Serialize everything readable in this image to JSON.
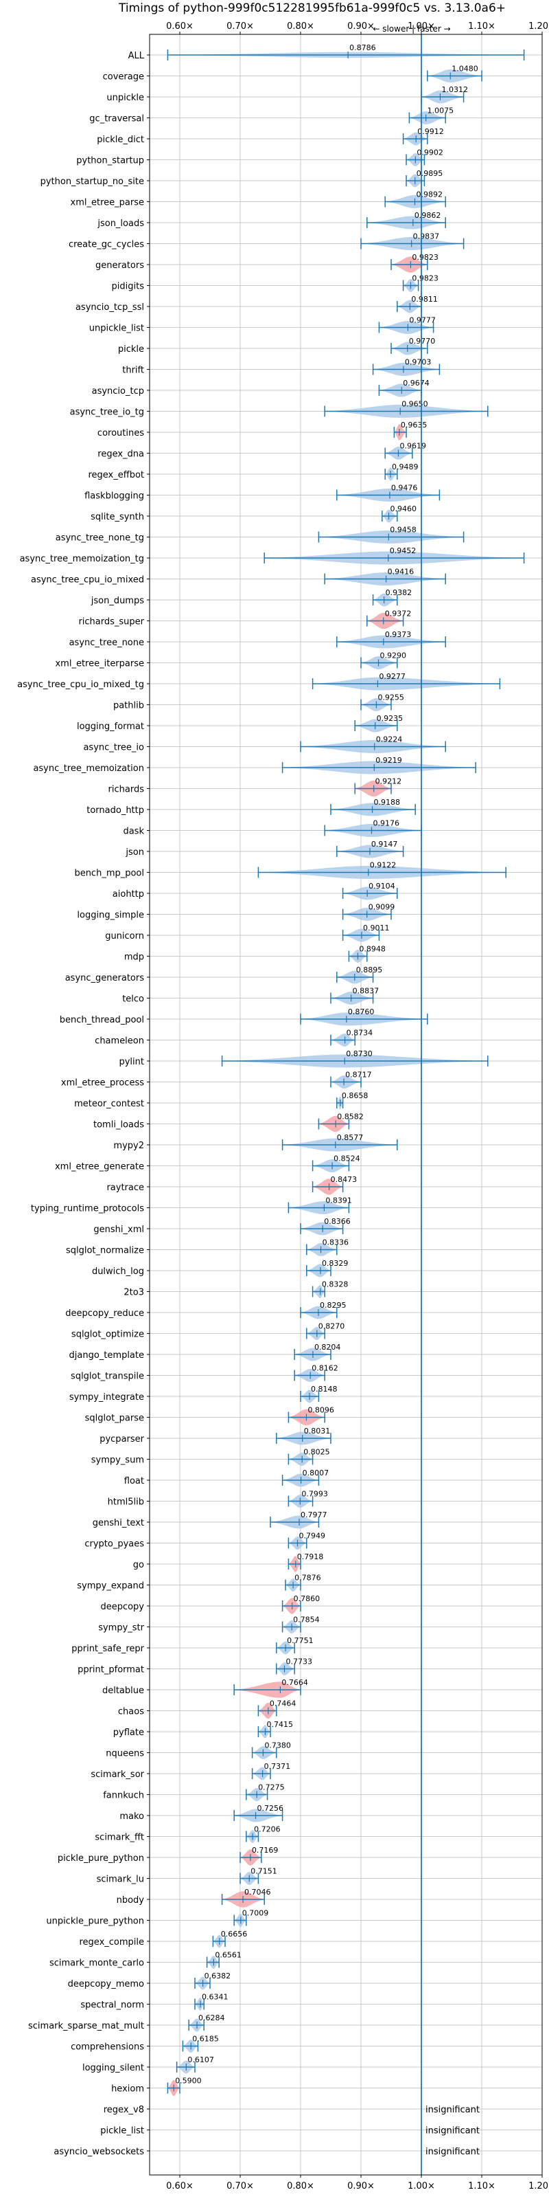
{
  "chart_data": {
    "type": "violin",
    "title": "Timings of python-999f0c512281995fb61a-999f0c5 vs. 3.13.0a6+",
    "subtitle": "← slower | faster →",
    "xlim": [
      0.55,
      1.2
    ],
    "xticks": [
      0.6,
      0.7,
      0.8,
      0.9,
      1.0,
      1.1,
      1.2
    ],
    "xtick_labels": [
      "0.60×",
      "0.70×",
      "0.80×",
      "0.90×",
      "1.00×",
      "1.10×",
      "1.20×"
    ],
    "reference_line": 1.0,
    "grid": true,
    "colors": {
      "normal": "#a8c8e8",
      "highlight": "#f4a0a4",
      "line": "#1f77b4",
      "grid": "#c8c8c8"
    },
    "insignificant_label": "insignificant",
    "benchmarks": [
      {
        "name": "ALL",
        "value": 0.8786,
        "lo": 0.58,
        "hi": 1.17,
        "spread": 0.02,
        "hl": false
      },
      {
        "name": "coverage",
        "value": 1.048,
        "lo": 1.01,
        "hi": 1.1,
        "spread": 0.5,
        "hl": false
      },
      {
        "name": "unpickle",
        "value": 1.0312,
        "lo": 1.0,
        "hi": 1.07,
        "spread": 0.5,
        "hl": false
      },
      {
        "name": "gc_traversal",
        "value": 1.0075,
        "lo": 0.98,
        "hi": 1.04,
        "spread": 0.5,
        "hl": false
      },
      {
        "name": "pickle_dict",
        "value": 0.9912,
        "lo": 0.97,
        "hi": 1.01,
        "spread": 0.5,
        "hl": false
      },
      {
        "name": "python_startup",
        "value": 0.9902,
        "lo": 0.975,
        "hi": 1.005,
        "spread": 0.5,
        "hl": false
      },
      {
        "name": "python_startup_no_site",
        "value": 0.9895,
        "lo": 0.975,
        "hi": 1.005,
        "spread": 0.5,
        "hl": false
      },
      {
        "name": "xml_etree_parse",
        "value": 0.9892,
        "lo": 0.94,
        "hi": 1.04,
        "spread": 0.5,
        "hl": false
      },
      {
        "name": "json_loads",
        "value": 0.9862,
        "lo": 0.91,
        "hi": 1.04,
        "spread": 0.5,
        "hl": false
      },
      {
        "name": "create_gc_cycles",
        "value": 0.9837,
        "lo": 0.9,
        "hi": 1.07,
        "spread": 0.5,
        "hl": false
      },
      {
        "name": "generators",
        "value": 0.9823,
        "lo": 0.95,
        "hi": 1.01,
        "spread": 0.7,
        "hl": true
      },
      {
        "name": "pidigits",
        "value": 0.9823,
        "lo": 0.97,
        "hi": 0.995,
        "spread": 0.5,
        "hl": false
      },
      {
        "name": "asyncio_tcp_ssl",
        "value": 0.9811,
        "lo": 0.96,
        "hi": 1.0,
        "spread": 0.5,
        "hl": false
      },
      {
        "name": "unpickle_list",
        "value": 0.9777,
        "lo": 0.93,
        "hi": 1.02,
        "spread": 0.5,
        "hl": false
      },
      {
        "name": "pickle",
        "value": 0.977,
        "lo": 0.95,
        "hi": 1.01,
        "spread": 0.5,
        "hl": false
      },
      {
        "name": "thrift",
        "value": 0.9703,
        "lo": 0.92,
        "hi": 1.03,
        "spread": 0.5,
        "hl": false
      },
      {
        "name": "asyncio_tcp",
        "value": 0.9674,
        "lo": 0.93,
        "hi": 1.0,
        "spread": 0.5,
        "hl": false
      },
      {
        "name": "async_tree_io_tg",
        "value": 0.965,
        "lo": 0.84,
        "hi": 1.11,
        "spread": 0.5,
        "hl": false
      },
      {
        "name": "coroutines",
        "value": 0.9635,
        "lo": 0.955,
        "hi": 0.975,
        "spread": 0.7,
        "hl": true
      },
      {
        "name": "regex_dna",
        "value": 0.9619,
        "lo": 0.94,
        "hi": 0.985,
        "spread": 0.5,
        "hl": false
      },
      {
        "name": "regex_effbot",
        "value": 0.9489,
        "lo": 0.94,
        "hi": 0.96,
        "spread": 0.5,
        "hl": false
      },
      {
        "name": "flaskblogging",
        "value": 0.9476,
        "lo": 0.86,
        "hi": 1.03,
        "spread": 0.5,
        "hl": false
      },
      {
        "name": "sqlite_synth",
        "value": 0.946,
        "lo": 0.935,
        "hi": 0.96,
        "spread": 0.5,
        "hl": false
      },
      {
        "name": "async_tree_none_tg",
        "value": 0.9458,
        "lo": 0.83,
        "hi": 1.07,
        "spread": 0.5,
        "hl": false
      },
      {
        "name": "async_tree_memoization_tg",
        "value": 0.9452,
        "lo": 0.74,
        "hi": 1.17,
        "spread": 0.5,
        "hl": false
      },
      {
        "name": "async_tree_cpu_io_mixed",
        "value": 0.9416,
        "lo": 0.84,
        "hi": 1.04,
        "spread": 0.5,
        "hl": false
      },
      {
        "name": "json_dumps",
        "value": 0.9382,
        "lo": 0.92,
        "hi": 0.96,
        "spread": 0.5,
        "hl": false
      },
      {
        "name": "richards_super",
        "value": 0.9372,
        "lo": 0.91,
        "hi": 0.97,
        "spread": 0.7,
        "hl": true
      },
      {
        "name": "async_tree_none",
        "value": 0.9373,
        "lo": 0.86,
        "hi": 1.04,
        "spread": 0.5,
        "hl": false
      },
      {
        "name": "xml_etree_iterparse",
        "value": 0.929,
        "lo": 0.9,
        "hi": 0.96,
        "spread": 0.5,
        "hl": false
      },
      {
        "name": "async_tree_cpu_io_mixed_tg",
        "value": 0.9277,
        "lo": 0.82,
        "hi": 1.13,
        "spread": 0.5,
        "hl": false
      },
      {
        "name": "pathlib",
        "value": 0.9255,
        "lo": 0.9,
        "hi": 0.95,
        "spread": 0.5,
        "hl": false
      },
      {
        "name": "logging_format",
        "value": 0.9235,
        "lo": 0.89,
        "hi": 0.96,
        "spread": 0.5,
        "hl": false
      },
      {
        "name": "async_tree_io",
        "value": 0.9224,
        "lo": 0.8,
        "hi": 1.04,
        "spread": 0.5,
        "hl": false
      },
      {
        "name": "async_tree_memoization",
        "value": 0.9219,
        "lo": 0.77,
        "hi": 1.09,
        "spread": 0.5,
        "hl": false
      },
      {
        "name": "richards",
        "value": 0.9212,
        "lo": 0.89,
        "hi": 0.95,
        "spread": 0.7,
        "hl": true
      },
      {
        "name": "tornado_http",
        "value": 0.9188,
        "lo": 0.85,
        "hi": 0.99,
        "spread": 0.5,
        "hl": false
      },
      {
        "name": "dask",
        "value": 0.9176,
        "lo": 0.84,
        "hi": 1.0,
        "spread": 0.5,
        "hl": false
      },
      {
        "name": "json",
        "value": 0.9147,
        "lo": 0.86,
        "hi": 0.97,
        "spread": 0.5,
        "hl": false
      },
      {
        "name": "bench_mp_pool",
        "value": 0.9122,
        "lo": 0.73,
        "hi": 1.14,
        "spread": 0.5,
        "hl": false
      },
      {
        "name": "aiohttp",
        "value": 0.9104,
        "lo": 0.87,
        "hi": 0.96,
        "spread": 0.5,
        "hl": false
      },
      {
        "name": "logging_simple",
        "value": 0.9099,
        "lo": 0.87,
        "hi": 0.95,
        "spread": 0.5,
        "hl": false
      },
      {
        "name": "gunicorn",
        "value": 0.9011,
        "lo": 0.87,
        "hi": 0.93,
        "spread": 0.5,
        "hl": false
      },
      {
        "name": "mdp",
        "value": 0.8948,
        "lo": 0.88,
        "hi": 0.91,
        "spread": 0.5,
        "hl": false
      },
      {
        "name": "async_generators",
        "value": 0.8895,
        "lo": 0.86,
        "hi": 0.92,
        "spread": 0.5,
        "hl": false
      },
      {
        "name": "telco",
        "value": 0.8837,
        "lo": 0.85,
        "hi": 0.92,
        "spread": 0.5,
        "hl": false
      },
      {
        "name": "bench_thread_pool",
        "value": 0.876,
        "lo": 0.8,
        "hi": 1.01,
        "spread": 0.5,
        "hl": false
      },
      {
        "name": "chameleon",
        "value": 0.8734,
        "lo": 0.85,
        "hi": 0.89,
        "spread": 0.5,
        "hl": false
      },
      {
        "name": "pylint",
        "value": 0.873,
        "lo": 0.67,
        "hi": 1.11,
        "spread": 0.5,
        "hl": false
      },
      {
        "name": "xml_etree_process",
        "value": 0.8717,
        "lo": 0.85,
        "hi": 0.9,
        "spread": 0.5,
        "hl": false
      },
      {
        "name": "meteor_contest",
        "value": 0.8658,
        "lo": 0.86,
        "hi": 0.87,
        "spread": 0.5,
        "hl": false
      },
      {
        "name": "tomli_loads",
        "value": 0.8582,
        "lo": 0.83,
        "hi": 0.88,
        "spread": 0.7,
        "hl": true
      },
      {
        "name": "mypy2",
        "value": 0.8577,
        "lo": 0.77,
        "hi": 0.96,
        "spread": 0.5,
        "hl": false
      },
      {
        "name": "xml_etree_generate",
        "value": 0.8524,
        "lo": 0.82,
        "hi": 0.88,
        "spread": 0.5,
        "hl": false
      },
      {
        "name": "raytrace",
        "value": 0.8473,
        "lo": 0.82,
        "hi": 0.87,
        "spread": 0.7,
        "hl": true
      },
      {
        "name": "typing_runtime_protocols",
        "value": 0.8391,
        "lo": 0.78,
        "hi": 0.88,
        "spread": 0.5,
        "hl": false
      },
      {
        "name": "genshi_xml",
        "value": 0.8366,
        "lo": 0.8,
        "hi": 0.87,
        "spread": 0.5,
        "hl": false
      },
      {
        "name": "sqlglot_normalize",
        "value": 0.8336,
        "lo": 0.81,
        "hi": 0.86,
        "spread": 0.5,
        "hl": false
      },
      {
        "name": "dulwich_log",
        "value": 0.8329,
        "lo": 0.81,
        "hi": 0.85,
        "spread": 0.5,
        "hl": false
      },
      {
        "name": "2to3",
        "value": 0.8328,
        "lo": 0.82,
        "hi": 0.84,
        "spread": 0.5,
        "hl": false
      },
      {
        "name": "deepcopy_reduce",
        "value": 0.8295,
        "lo": 0.8,
        "hi": 0.86,
        "spread": 0.5,
        "hl": false
      },
      {
        "name": "sqlglot_optimize",
        "value": 0.827,
        "lo": 0.81,
        "hi": 0.84,
        "spread": 0.5,
        "hl": false
      },
      {
        "name": "django_template",
        "value": 0.8204,
        "lo": 0.79,
        "hi": 0.85,
        "spread": 0.5,
        "hl": false
      },
      {
        "name": "sqlglot_transpile",
        "value": 0.8162,
        "lo": 0.79,
        "hi": 0.84,
        "spread": 0.5,
        "hl": false
      },
      {
        "name": "sympy_integrate",
        "value": 0.8148,
        "lo": 0.8,
        "hi": 0.83,
        "spread": 0.5,
        "hl": false
      },
      {
        "name": "sqlglot_parse",
        "value": 0.8096,
        "lo": 0.78,
        "hi": 0.84,
        "spread": 0.7,
        "hl": true
      },
      {
        "name": "pycparser",
        "value": 0.8031,
        "lo": 0.76,
        "hi": 0.85,
        "spread": 0.5,
        "hl": false
      },
      {
        "name": "sympy_sum",
        "value": 0.8025,
        "lo": 0.78,
        "hi": 0.82,
        "spread": 0.5,
        "hl": false
      },
      {
        "name": "float",
        "value": 0.8007,
        "lo": 0.77,
        "hi": 0.83,
        "spread": 0.5,
        "hl": false
      },
      {
        "name": "html5lib",
        "value": 0.7993,
        "lo": 0.78,
        "hi": 0.82,
        "spread": 0.5,
        "hl": false
      },
      {
        "name": "genshi_text",
        "value": 0.7977,
        "lo": 0.75,
        "hi": 0.83,
        "spread": 0.5,
        "hl": false
      },
      {
        "name": "crypto_pyaes",
        "value": 0.7949,
        "lo": 0.78,
        "hi": 0.81,
        "spread": 0.5,
        "hl": false
      },
      {
        "name": "go",
        "value": 0.7918,
        "lo": 0.78,
        "hi": 0.8,
        "spread": 0.7,
        "hl": true
      },
      {
        "name": "sympy_expand",
        "value": 0.7876,
        "lo": 0.775,
        "hi": 0.8,
        "spread": 0.5,
        "hl": false
      },
      {
        "name": "deepcopy",
        "value": 0.786,
        "lo": 0.77,
        "hi": 0.8,
        "spread": 0.7,
        "hl": true
      },
      {
        "name": "sympy_str",
        "value": 0.7854,
        "lo": 0.77,
        "hi": 0.8,
        "spread": 0.5,
        "hl": false
      },
      {
        "name": "pprint_safe_repr",
        "value": 0.7751,
        "lo": 0.76,
        "hi": 0.79,
        "spread": 0.5,
        "hl": false
      },
      {
        "name": "pprint_pformat",
        "value": 0.7733,
        "lo": 0.76,
        "hi": 0.79,
        "spread": 0.5,
        "hl": false
      },
      {
        "name": "deltablue",
        "value": 0.7664,
        "lo": 0.69,
        "hi": 0.8,
        "spread": 0.7,
        "hl": true
      },
      {
        "name": "chaos",
        "value": 0.7464,
        "lo": 0.73,
        "hi": 0.76,
        "spread": 0.7,
        "hl": true
      },
      {
        "name": "pyflate",
        "value": 0.7415,
        "lo": 0.73,
        "hi": 0.75,
        "spread": 0.5,
        "hl": false
      },
      {
        "name": "nqueens",
        "value": 0.738,
        "lo": 0.72,
        "hi": 0.76,
        "spread": 0.5,
        "hl": false
      },
      {
        "name": "scimark_sor",
        "value": 0.7371,
        "lo": 0.72,
        "hi": 0.75,
        "spread": 0.5,
        "hl": false
      },
      {
        "name": "fannkuch",
        "value": 0.7275,
        "lo": 0.71,
        "hi": 0.745,
        "spread": 0.5,
        "hl": false
      },
      {
        "name": "mako",
        "value": 0.7256,
        "lo": 0.69,
        "hi": 0.77,
        "spread": 0.5,
        "hl": false
      },
      {
        "name": "scimark_fft",
        "value": 0.7206,
        "lo": 0.71,
        "hi": 0.73,
        "spread": 0.5,
        "hl": false
      },
      {
        "name": "pickle_pure_python",
        "value": 0.7169,
        "lo": 0.7,
        "hi": 0.735,
        "spread": 0.7,
        "hl": true
      },
      {
        "name": "scimark_lu",
        "value": 0.7151,
        "lo": 0.7,
        "hi": 0.73,
        "spread": 0.5,
        "hl": false
      },
      {
        "name": "nbody",
        "value": 0.7046,
        "lo": 0.67,
        "hi": 0.74,
        "spread": 0.7,
        "hl": true
      },
      {
        "name": "unpickle_pure_python",
        "value": 0.7009,
        "lo": 0.69,
        "hi": 0.71,
        "spread": 0.5,
        "hl": false
      },
      {
        "name": "regex_compile",
        "value": 0.6656,
        "lo": 0.655,
        "hi": 0.675,
        "spread": 0.5,
        "hl": false
      },
      {
        "name": "scimark_monte_carlo",
        "value": 0.6561,
        "lo": 0.645,
        "hi": 0.665,
        "spread": 0.5,
        "hl": false
      },
      {
        "name": "deepcopy_memo",
        "value": 0.6382,
        "lo": 0.625,
        "hi": 0.65,
        "spread": 0.5,
        "hl": false
      },
      {
        "name": "spectral_norm",
        "value": 0.6341,
        "lo": 0.625,
        "hi": 0.64,
        "spread": 0.5,
        "hl": false
      },
      {
        "name": "scimark_sparse_mat_mult",
        "value": 0.6284,
        "lo": 0.615,
        "hi": 0.64,
        "spread": 0.5,
        "hl": false
      },
      {
        "name": "comprehensions",
        "value": 0.6185,
        "lo": 0.605,
        "hi": 0.63,
        "spread": 0.5,
        "hl": false
      },
      {
        "name": "logging_silent",
        "value": 0.6107,
        "lo": 0.595,
        "hi": 0.625,
        "spread": 0.5,
        "hl": false
      },
      {
        "name": "hexiom",
        "value": 0.59,
        "lo": 0.58,
        "hi": 0.6,
        "spread": 0.7,
        "hl": true
      },
      {
        "name": "regex_v8",
        "value": null,
        "insignificant": true
      },
      {
        "name": "pickle_list",
        "value": null,
        "insignificant": true
      },
      {
        "name": "asyncio_websockets",
        "value": null,
        "insignificant": true
      }
    ]
  }
}
